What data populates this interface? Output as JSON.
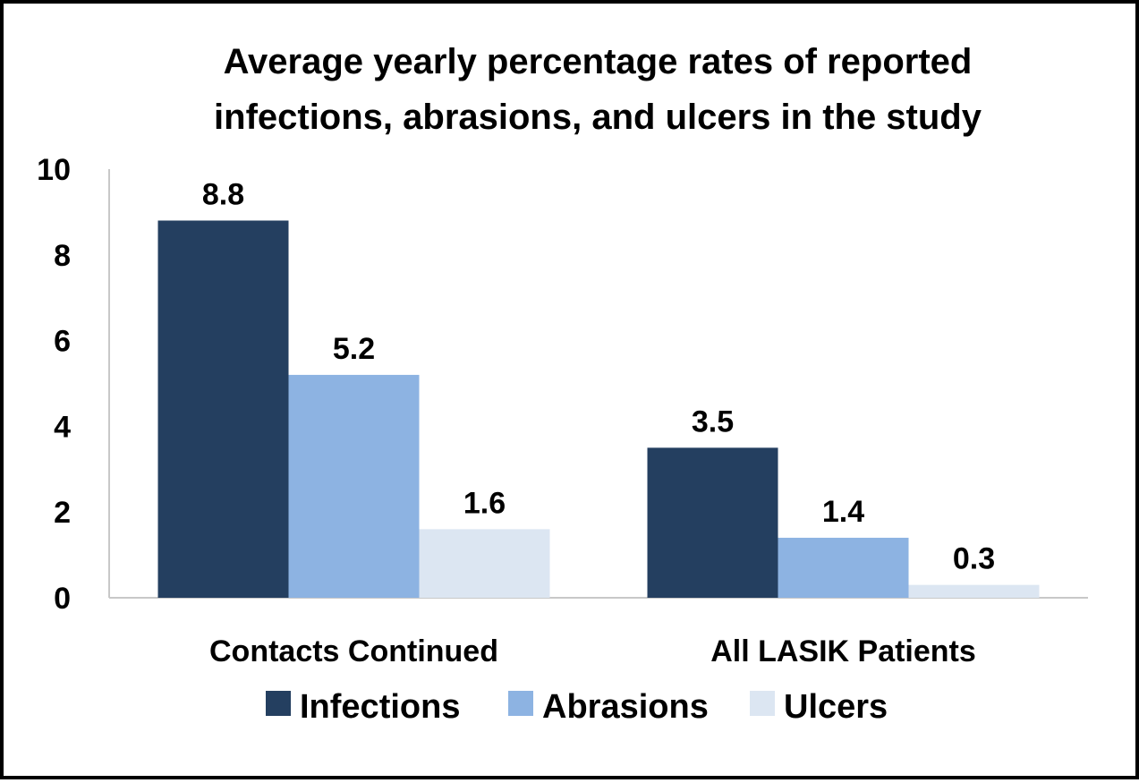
{
  "chart_data": {
    "type": "bar",
    "title": "Average yearly percentage rates of reported infections, abrasions, and ulcers in the study",
    "title_lines": [
      "Average yearly percentage rates of reported",
      "infections, abrasions, and ulcers in the study"
    ],
    "categories": [
      "Contacts Continued",
      "All LASIK Patients"
    ],
    "series": [
      {
        "name": "Infections",
        "values": [
          8.8,
          3.5
        ],
        "labels": [
          "8.8",
          "3.5"
        ],
        "color": "#243F60"
      },
      {
        "name": "Abrasions",
        "values": [
          5.2,
          1.4
        ],
        "labels": [
          "5.2",
          "1.4"
        ],
        "color": "#8DB3E2"
      },
      {
        "name": "Ulcers",
        "values": [
          1.6,
          0.3
        ],
        "labels": [
          "1.6",
          "0.3"
        ],
        "color": "#DCE6F2"
      }
    ],
    "ylim": [
      0,
      10
    ],
    "yticks": [
      "0",
      "2",
      "4",
      "6",
      "8",
      "10"
    ],
    "xlabel": "",
    "ylabel": "",
    "grid": false,
    "legend_position": "bottom"
  }
}
